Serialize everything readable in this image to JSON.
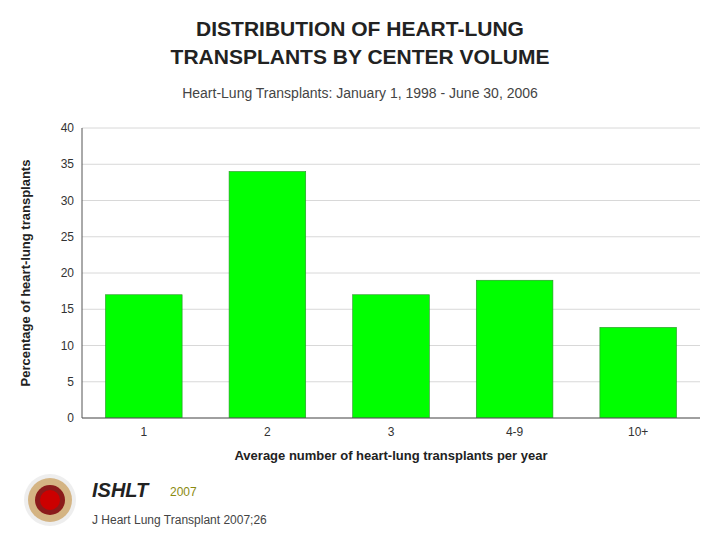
{
  "chart_data": {
    "type": "bar",
    "title": [
      "DISTRIBUTION OF HEART-LUNG",
      "TRANSPLANTS BY CENTER VOLUME"
    ],
    "subtitle": "Heart-Lung Transplants: January 1, 1998 - June 30, 2006",
    "categories": [
      "1",
      "2",
      "3",
      "4-9",
      "10+"
    ],
    "values": [
      17,
      34,
      17,
      19,
      12.5
    ],
    "color": "#00ff00",
    "x_label": "Average number of heart-lung transplants per year",
    "y_label": "Percentage of heart-lung transplants",
    "ylim": [
      0,
      40
    ],
    "yticks": [
      0,
      5,
      10,
      15,
      20,
      25,
      30,
      35,
      40
    ],
    "grid": true,
    "annotations": [
      "ISHLT",
      "2007",
      "J Heart Lung Transplant 2007;26"
    ]
  }
}
